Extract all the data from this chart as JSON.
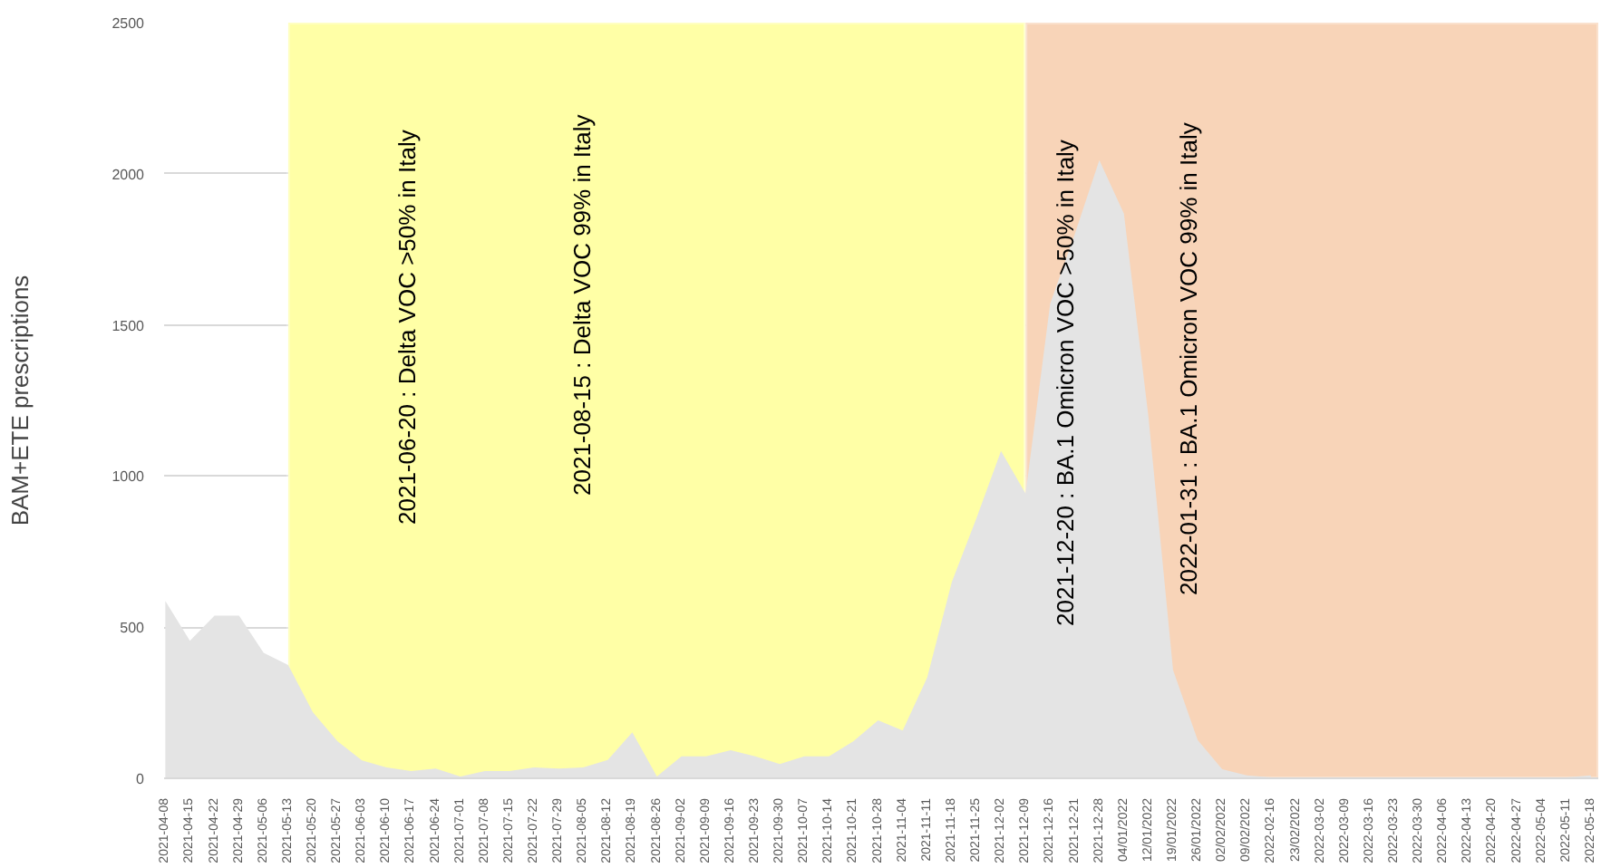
{
  "chart_data": {
    "type": "area",
    "ylabel": "BAM+ETE prescriptions",
    "categories": [
      "2021-04-08",
      "2021-04-15",
      "2021-04-22",
      "2021-04-29",
      "2021-05-06",
      "2021-05-13",
      "2021-05-20",
      "2021-05-27",
      "2021-06-03",
      "2021-06-10",
      "2021-06-17",
      "2021-06-24",
      "2021-07-01",
      "2021-07-08",
      "2021-07-15",
      "2021-07-22",
      "2021-07-29",
      "2021-08-05",
      "2021-08-12",
      "2021-08-19",
      "2021-08-26",
      "2021-09-02",
      "2021-09-09",
      "2021-09-16",
      "2021-09-23",
      "2021-09-30",
      "2021-10-07",
      "2021-10-14",
      "2021-10-21",
      "2021-10-28",
      "2021-11-04",
      "2021-11-11",
      "2021-11-18",
      "2021-11-25",
      "2021-12-02",
      "2021-12-09",
      "2021-12-16",
      "2021-12-21",
      "2021-12-28",
      "04/01/2022",
      "12/01/2022",
      "19/01/2022",
      "26/01/2022",
      "02/02/2022",
      "09/02/2022",
      "2022-02-16",
      "23/02/2022",
      "2022-03-02",
      "2022-03-09",
      "2022-03-16",
      "2022-03-23",
      "2022-03-30",
      "2022-04-06",
      "2022-04-13",
      "2022-04-20",
      "2022-04-27",
      "2022-05-04",
      "2022-05-11",
      "2022-05-18"
    ],
    "series": [
      {
        "color": "#e4e4e4",
        "values": [
          587,
          455,
          538,
          538,
          415,
          375,
          219,
          123,
          59,
          36,
          24,
          32,
          6,
          24,
          24,
          36,
          32,
          36,
          61,
          152,
          6,
          73,
          73,
          93,
          73,
          47,
          73,
          73,
          123,
          192,
          158,
          334,
          650,
          860,
          1083,
          942,
          1570,
          1800,
          2045,
          1868,
          1195,
          358,
          127,
          30,
          10,
          3,
          3,
          3,
          3,
          3,
          3,
          3,
          3,
          3,
          3,
          3,
          3,
          3,
          10
        ]
      }
    ],
    "ylim": [
      0,
      2500
    ],
    "yticks": [
      0,
      500,
      1000,
      1500,
      2000,
      2500
    ],
    "grid": "y",
    "bands": [
      {
        "axis": "x",
        "from": "2021-05-13",
        "to": "2021-12-09",
        "color": "#ffffa6"
      },
      {
        "axis": "x",
        "from": "2021-12-09",
        "to": "2022-05-18",
        "color": "#f8d4b8"
      }
    ],
    "annotations": [
      "2021-06-20 : Delta VOC >50% in Italy",
      "2021-08-15 : Delta VOC 99% in Italy",
      "2021-12-20 : BA.1 Omicron VOC >50% in Italy",
      "2022-01-31 : BA.1 Omicron VOC 99% in Italy"
    ]
  }
}
